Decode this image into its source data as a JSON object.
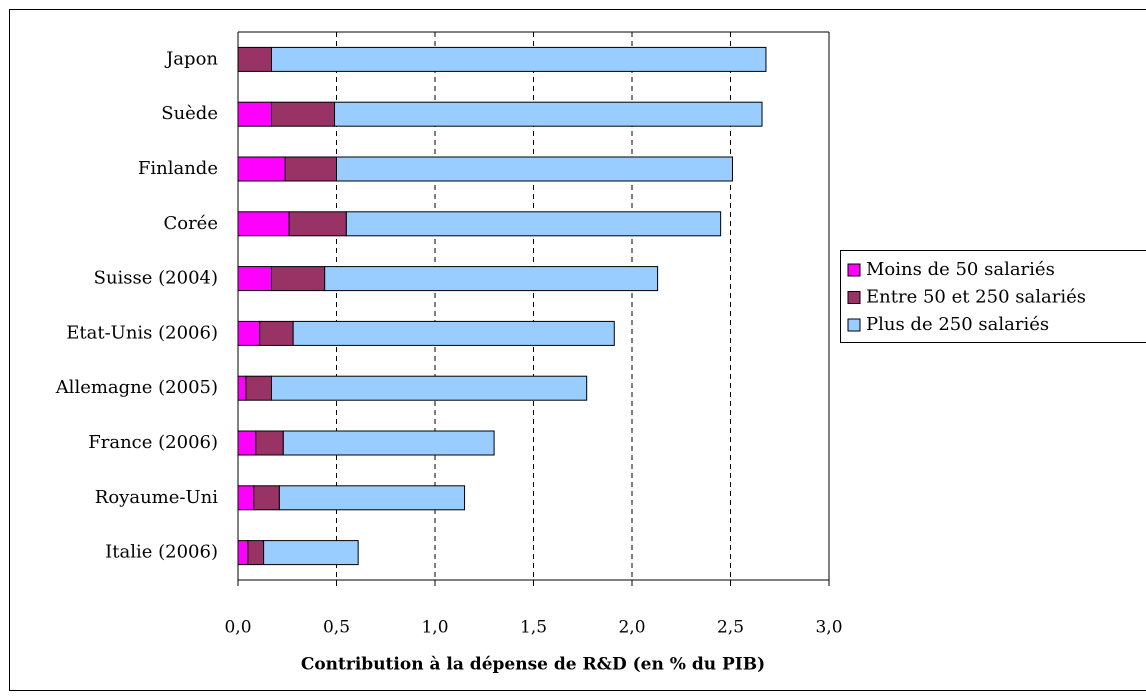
{
  "chart_data": {
    "type": "stacked-barh",
    "xlabel": "Contribution à la dépense de R&D (en % du PIB)",
    "categories": [
      "Japon",
      "Suède",
      "Finlande",
      "Corée",
      "Suisse (2004)",
      "Etat-Unis (2006)",
      "Allemagne (2005)",
      "France (2006)",
      "Royaume-Uni",
      "Italie (2006)"
    ],
    "series": [
      {
        "name": "Moins de 50 salariés",
        "color": "#ff00ff",
        "values": [
          0,
          0.17,
          0.24,
          0.26,
          0.17,
          0.11,
          0.04,
          0.09,
          0.08,
          0.05
        ]
      },
      {
        "name": "Entre 50 et 250 salariés",
        "color": "#993366",
        "values": [
          0.17,
          0.32,
          0.26,
          0.29,
          0.27,
          0.17,
          0.13,
          0.14,
          0.13,
          0.08
        ]
      },
      {
        "name": "Plus de 250 salariés",
        "color": "#99ccff",
        "values": [
          2.51,
          2.17,
          2.01,
          1.9,
          1.69,
          1.63,
          1.6,
          1.07,
          0.94,
          0.48
        ]
      }
    ],
    "xlim": [
      0,
      3
    ],
    "xticks": [
      {
        "value": 0,
        "label": "0,0"
      },
      {
        "value": 0.5,
        "label": "0,5"
      },
      {
        "value": 1,
        "label": "1,0"
      },
      {
        "value": 1.5,
        "label": "1,5"
      },
      {
        "value": 2,
        "label": "2,0"
      },
      {
        "value": 2.5,
        "label": "2,5"
      },
      {
        "value": 3,
        "label": "3,0"
      }
    ],
    "grid": true,
    "legend": "right"
  }
}
